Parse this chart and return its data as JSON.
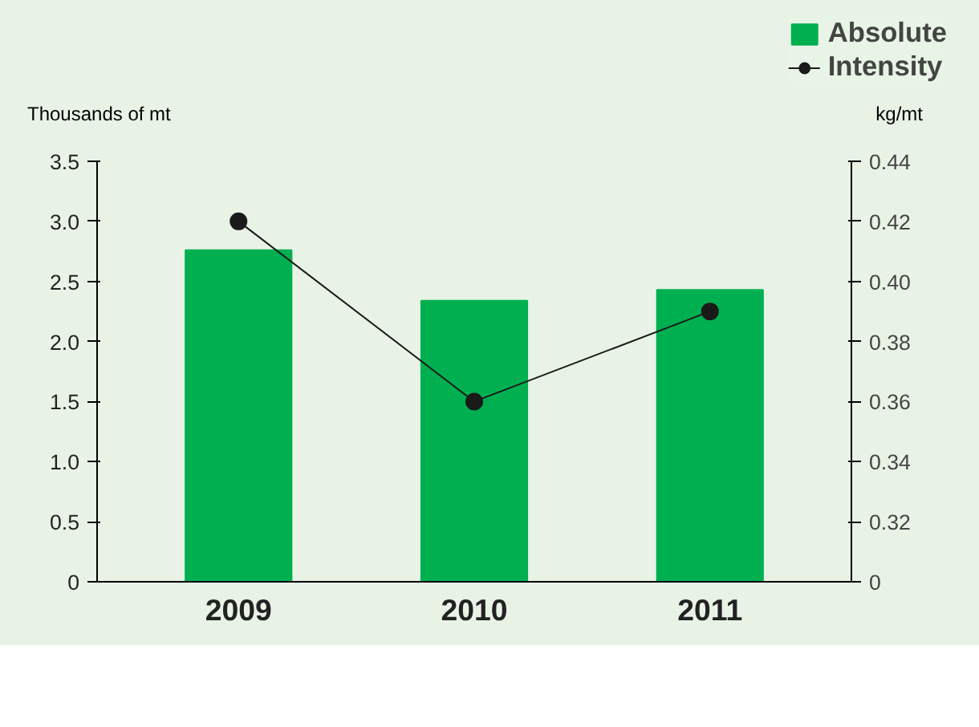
{
  "chart_data": {
    "type": "bar",
    "categories": [
      "2009",
      "2010",
      "2011"
    ],
    "ylabel": "Thousands of mt",
    "y2label": "kg/mt",
    "series": [
      {
        "name": "Absolute",
        "color": "#00b050",
        "values": [
          2.76,
          2.34,
          2.43
        ]
      },
      {
        "name": "Intensity",
        "type": "line",
        "axis": "y2",
        "color": "#1a1a1a",
        "marker": "circle",
        "values": [
          0.42,
          0.36,
          0.39
        ]
      }
    ],
    "ylim": [
      0,
      3.5
    ],
    "yticks": [
      {
        "value": 0,
        "label": "0"
      },
      0.5,
      {
        "value": 1,
        "label": "1.0"
      },
      1.5,
      {
        "value": 2,
        "label": "2.0"
      },
      2.5,
      {
        "value": 3,
        "label": "3.0"
      },
      3.5
    ],
    "y2lim": [
      0.3,
      0.44
    ],
    "y2ticks": [
      {
        "value": 0.3,
        "label": "0"
      },
      0.32,
      0.34,
      0.36,
      0.38,
      {
        "value": 0.4,
        "label": "0.40"
      },
      0.42,
      0.44
    ],
    "grid": false,
    "legend": "top right"
  }
}
